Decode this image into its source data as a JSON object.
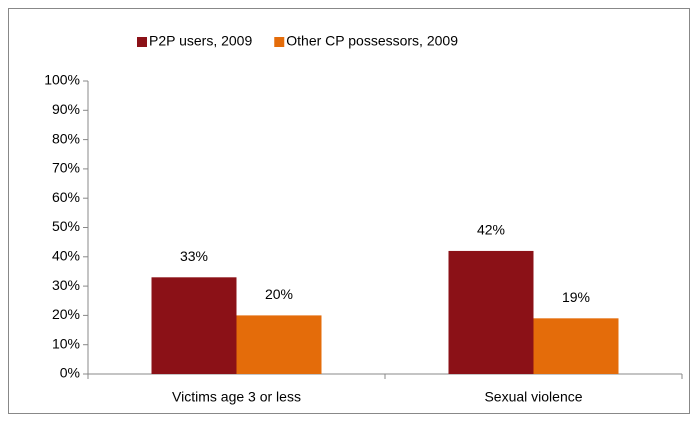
{
  "chart_data": {
    "type": "bar",
    "categories": [
      "Victims age 3 or less",
      "Sexual violence"
    ],
    "series": [
      {
        "name": "P2P users, 2009",
        "color": "#8b1117",
        "values": [
          33,
          42
        ],
        "value_labels": [
          "33%",
          "42%"
        ]
      },
      {
        "name": "Other CP possessors, 2009",
        "color": "#e46c0a",
        "values": [
          20,
          19
        ],
        "value_labels": [
          "20%",
          "19%"
        ]
      }
    ],
    "ylim": [
      0,
      100
    ],
    "yticks": [
      {
        "value": 0,
        "label": "0%"
      },
      {
        "value": 10,
        "label": "10%"
      },
      {
        "value": 20,
        "label": "20%"
      },
      {
        "value": 30,
        "label": "30%"
      },
      {
        "value": 40,
        "label": "40%"
      },
      {
        "value": 50,
        "label": "50%"
      },
      {
        "value": 60,
        "label": "60%"
      },
      {
        "value": 70,
        "label": "70%"
      },
      {
        "value": 80,
        "label": "80%"
      },
      {
        "value": 90,
        "label": "90%"
      },
      {
        "value": 100,
        "label": "100%"
      }
    ],
    "legend": "top",
    "grid": false
  }
}
